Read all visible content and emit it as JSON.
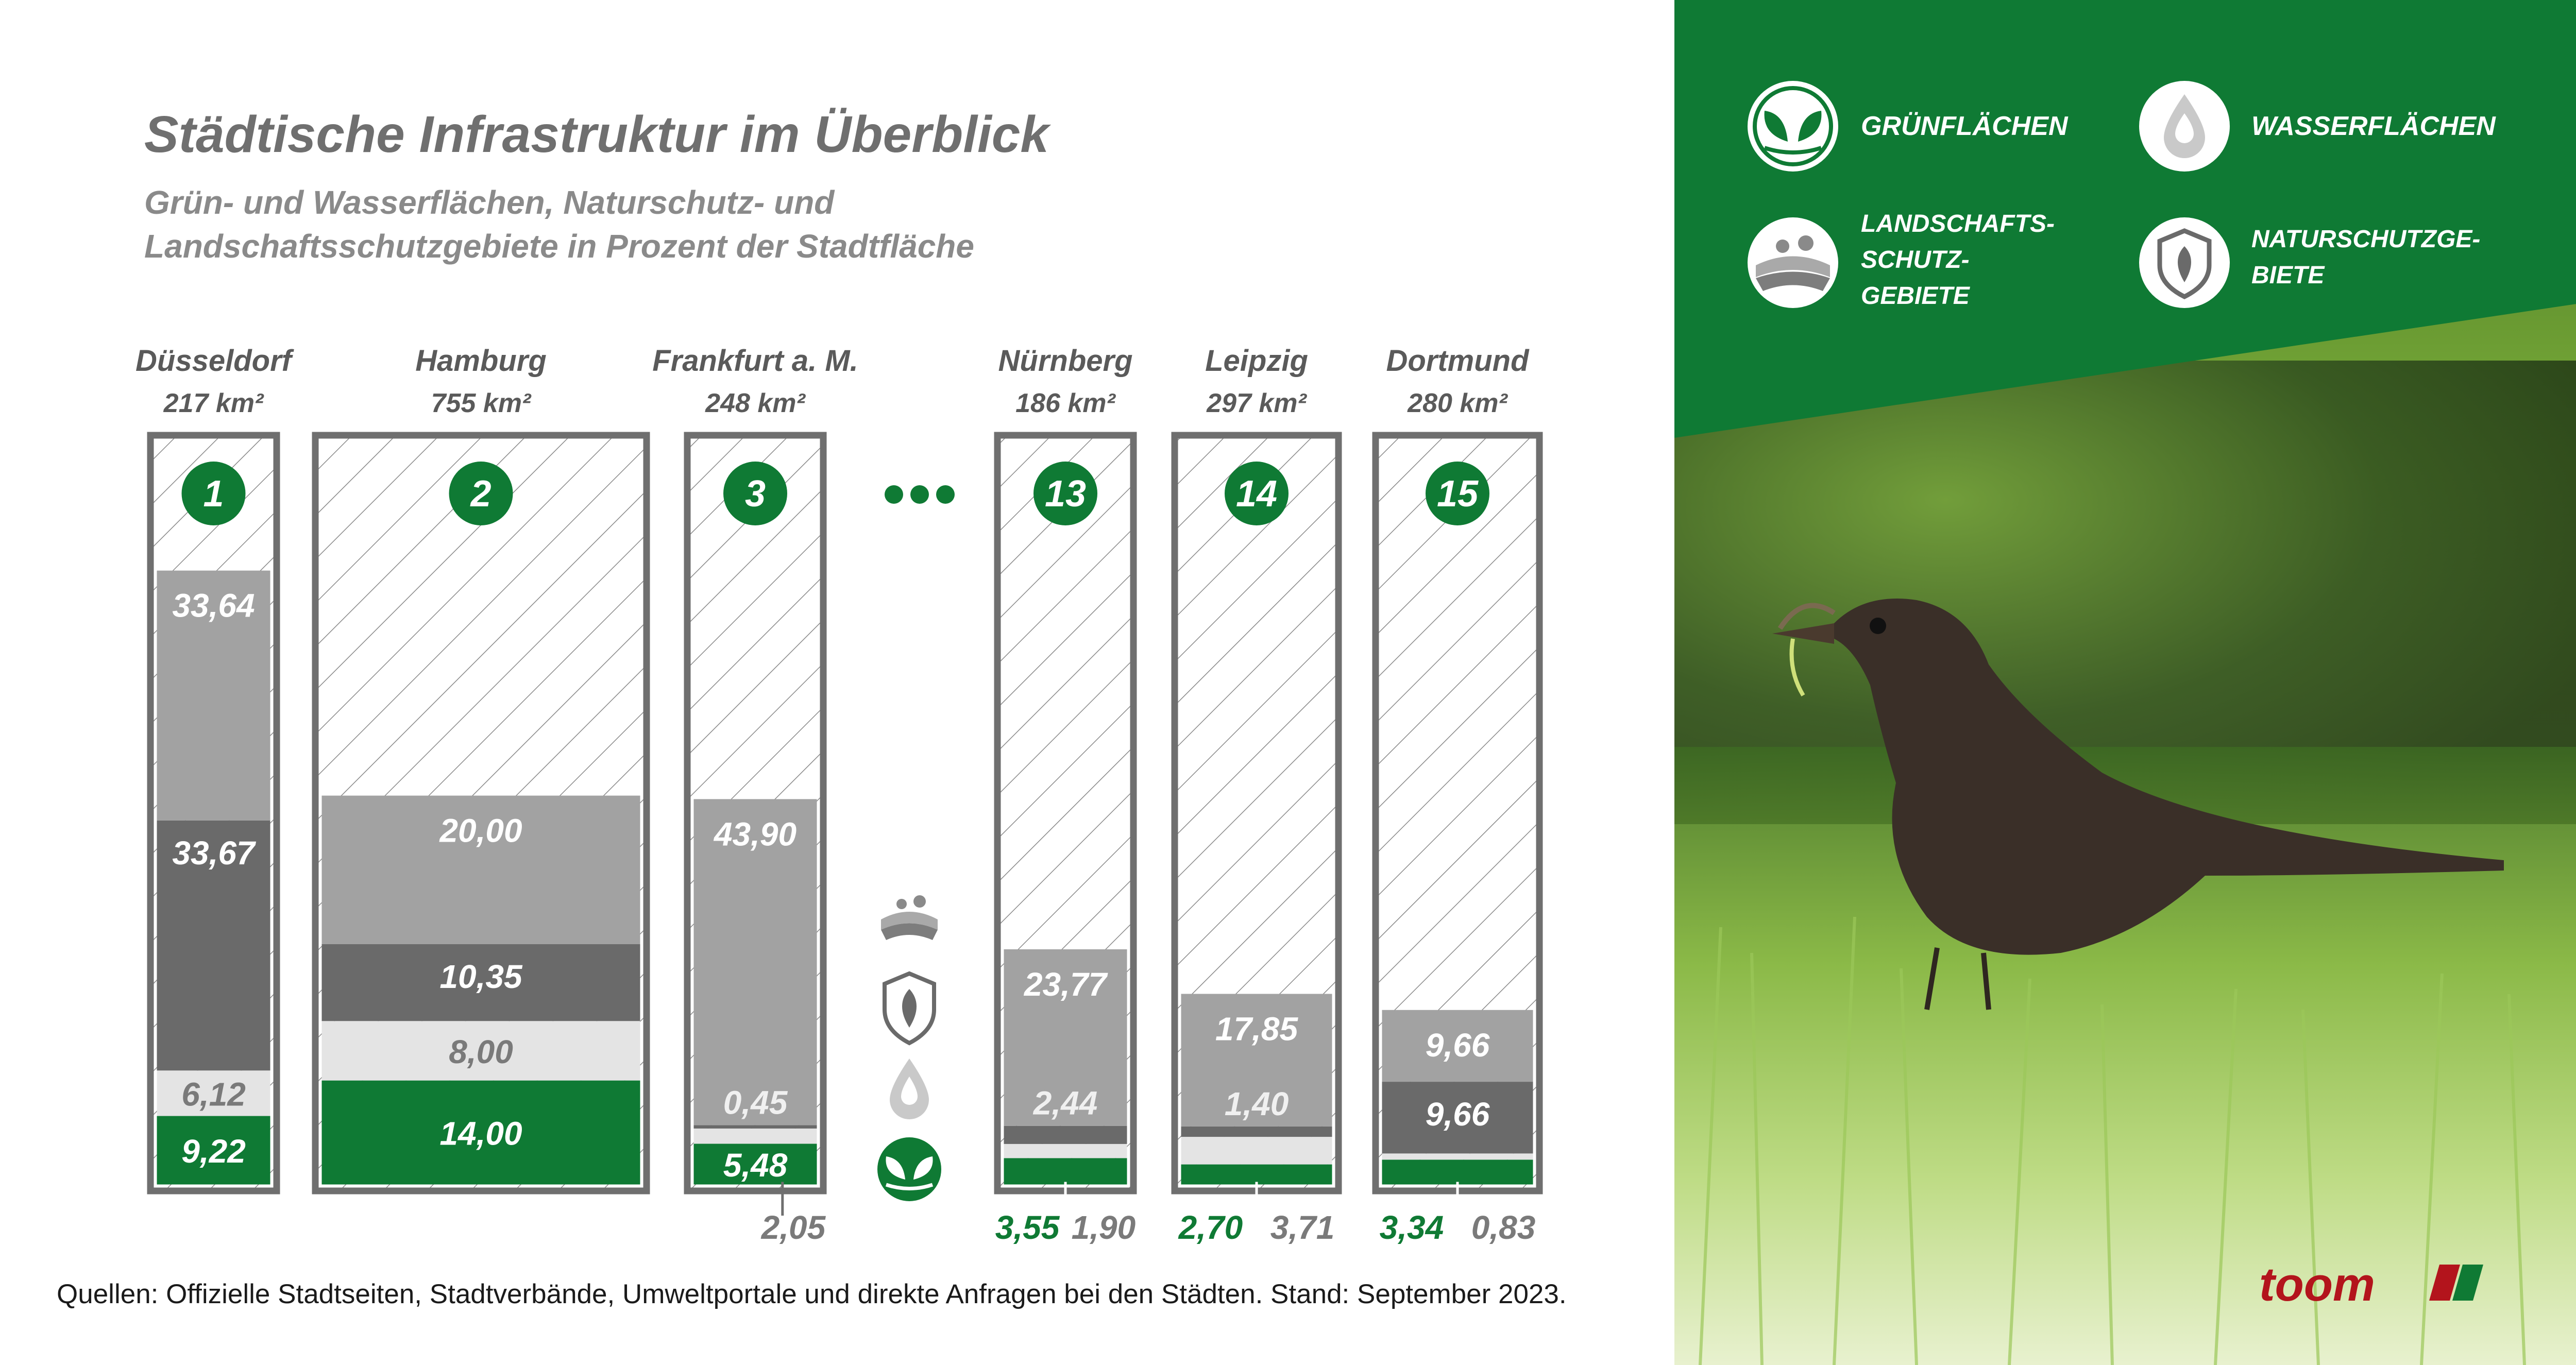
{
  "title": "Städtische Infrastruktur im Überblick",
  "subtitle_line1": "Grün- und Wasserflächen, Naturschutz- und",
  "subtitle_line2": "Landschaftsschutzgebiete in Prozent der Stadtfläche",
  "source": "Quellen: Offizielle Stadtseiten, Stadtverbände, Umweltportale und direkte Anfragen bei den Städten. Stand: September 2023.",
  "brand": "toom",
  "legend": {
    "gruen": "GRÜNFLÄCHEN",
    "wasser": "WASSERFLÄCHEN",
    "landschaft": [
      "LANDSCHAFTS-",
      "SCHUTZ-",
      "GEBIETE"
    ],
    "natur": [
      "NATURSCHUTZGE-",
      "BIETE"
    ]
  },
  "colors": {
    "green": "#0f7a34",
    "light": "#e4e4e4",
    "mid": "#a2a2a2",
    "dark": "#6a6a6a",
    "frame": "#6f6f6f",
    "brand_red": "#b3141c"
  },
  "chart_data": {
    "type": "bar",
    "stacked": true,
    "ylim": [
      0,
      100
    ],
    "series_order": [
      "Grünflächen",
      "Wasserflächen",
      "Naturschutzgebiete",
      "Landschaftsschutzgebiete"
    ],
    "cities": [
      {
        "rank": "1",
        "name": "Düsseldorf",
        "area": "217 km²",
        "values": {
          "gruen": 9.22,
          "wasser": 6.12,
          "natur": 33.67,
          "landschaft": 33.64
        },
        "labels": {
          "gruen": "9,22",
          "wasser": "6,12",
          "natur": "33,67",
          "landschaft": "33,64"
        }
      },
      {
        "rank": "2",
        "name": "Hamburg",
        "area": "755 km²",
        "values": {
          "gruen": 14.0,
          "wasser": 8.0,
          "natur": 10.35,
          "landschaft": 20.0
        },
        "labels": {
          "gruen": "14,00",
          "wasser": "8,00",
          "natur": "10,35",
          "landschaft": "20,00"
        }
      },
      {
        "rank": "3",
        "name": "Frankfurt a. M.",
        "area": "248 km²",
        "values": {
          "gruen": 5.48,
          "wasser": 2.05,
          "natur": 0.45,
          "landschaft": 43.9
        },
        "labels": {
          "gruen": "5,48",
          "wasser": "2,05",
          "natur": "0,45",
          "landschaft": "43,90"
        }
      },
      {
        "rank": "13",
        "name": "Nürnberg",
        "area": "186 km²",
        "values": {
          "gruen": 3.55,
          "wasser": 1.9,
          "natur": 2.44,
          "landschaft": 23.77
        },
        "labels": {
          "gruen": "3,55",
          "wasser": "1,90",
          "natur": "2,44",
          "landschaft": "23,77"
        }
      },
      {
        "rank": "14",
        "name": "Leipzig",
        "area": "297 km²",
        "values": {
          "gruen": 2.7,
          "wasser": 3.71,
          "natur": 1.4,
          "landschaft": 17.85
        },
        "labels": {
          "gruen": "2,70",
          "wasser": "3,71",
          "natur": "1,40",
          "landschaft": "17,85"
        }
      },
      {
        "rank": "15",
        "name": "Dortmund",
        "area": "280 km²",
        "values": {
          "gruen": 3.34,
          "wasser": 0.83,
          "natur": 9.66,
          "landschaft": 9.66
        },
        "labels": {
          "gruen": "3,34",
          "wasser": "0,83",
          "natur": "9,66",
          "landschaft": "9,66"
        }
      }
    ]
  }
}
